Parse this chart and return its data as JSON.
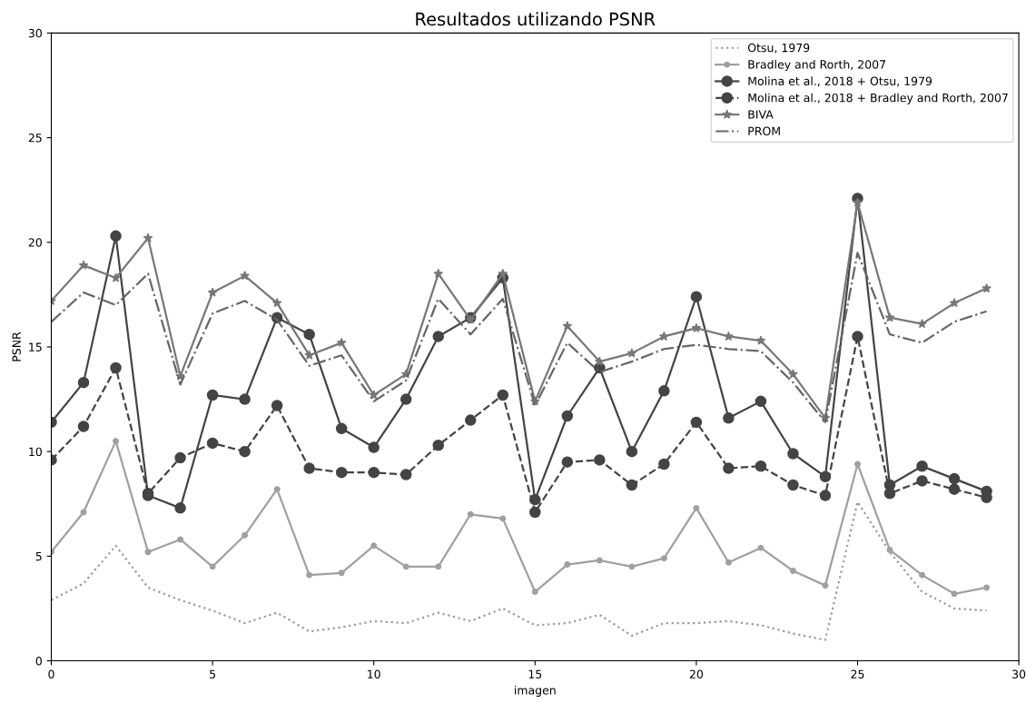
{
  "chart_data": {
    "type": "line",
    "title": "Resultados utilizando PSNR",
    "xlabel": "imagen",
    "ylabel": "PSNR",
    "x": [
      0,
      1,
      2,
      3,
      4,
      5,
      6,
      7,
      8,
      9,
      10,
      11,
      12,
      13,
      14,
      15,
      16,
      17,
      18,
      19,
      20,
      21,
      22,
      23,
      24,
      25,
      26,
      27,
      28,
      29
    ],
    "series": [
      {
        "name": "Otsu, 1979",
        "color": "#9a9a9a",
        "marker": "none",
        "line_style": "dotted",
        "values": [
          2.9,
          3.7,
          5.5,
          3.5,
          2.9,
          2.4,
          1.8,
          2.3,
          1.4,
          1.6,
          1.9,
          1.8,
          2.3,
          1.9,
          2.5,
          1.7,
          1.8,
          2.2,
          1.2,
          1.8,
          1.8,
          1.9,
          1.7,
          1.3,
          1.0,
          7.6,
          5.2,
          3.3,
          2.5,
          2.4
        ]
      },
      {
        "name": "Bradley and Rorth, 2007",
        "color": "#a0a0a0",
        "marker": "circle",
        "line_style": "solid",
        "values": [
          5.2,
          7.1,
          10.5,
          5.2,
          5.8,
          4.5,
          6.0,
          8.2,
          4.1,
          4.2,
          5.5,
          4.5,
          4.5,
          7.0,
          6.8,
          3.3,
          4.6,
          4.8,
          4.5,
          4.9,
          7.3,
          4.7,
          5.4,
          4.3,
          3.6,
          9.4,
          5.3,
          4.1,
          3.2,
          3.5
        ]
      },
      {
        "name": "Molina et al., 2018 + Otsu, 1979",
        "color": "#444444",
        "marker": "circle",
        "line_style": "solid",
        "values": [
          11.4,
          13.3,
          20.3,
          7.9,
          7.3,
          12.7,
          12.5,
          16.4,
          15.6,
          11.1,
          10.2,
          12.5,
          15.5,
          16.4,
          18.3,
          7.7,
          11.7,
          14.0,
          10.0,
          12.9,
          17.4,
          11.6,
          12.4,
          9.9,
          8.8,
          22.1,
          8.4,
          9.3,
          8.7,
          8.1
        ]
      },
      {
        "name": "Molina et al., 2018 + Bradley and Rorth, 2007",
        "color": "#444444",
        "marker": "circle",
        "line_style": "dashed",
        "values": [
          9.6,
          11.2,
          14.0,
          8.0,
          9.7,
          10.4,
          10.0,
          12.2,
          9.2,
          9.0,
          9.0,
          8.9,
          10.3,
          11.5,
          12.7,
          7.1,
          9.5,
          9.6,
          8.4,
          9.4,
          11.4,
          9.2,
          9.3,
          8.4,
          7.9,
          15.5,
          8.0,
          8.6,
          8.2,
          7.8
        ]
      },
      {
        "name": "BIVA",
        "color": "#777777",
        "marker": "star",
        "line_style": "solid",
        "values": [
          17.2,
          18.9,
          18.3,
          20.2,
          13.6,
          17.6,
          18.4,
          17.1,
          14.6,
          15.2,
          12.7,
          13.7,
          18.5,
          16.3,
          18.5,
          12.4,
          16.0,
          14.3,
          14.7,
          15.5,
          15.9,
          15.5,
          15.3,
          13.7,
          11.6,
          21.9,
          16.4,
          16.1,
          17.1,
          17.8
        ]
      },
      {
        "name": "PROM",
        "color": "#666666",
        "marker": "none",
        "line_style": "dashdot",
        "values": [
          16.2,
          17.6,
          17.0,
          18.5,
          13.2,
          16.6,
          17.2,
          16.3,
          14.1,
          14.6,
          12.4,
          13.4,
          17.3,
          15.6,
          17.3,
          12.2,
          15.2,
          13.8,
          14.3,
          14.9,
          15.1,
          14.9,
          14.8,
          13.3,
          11.4,
          19.5,
          15.6,
          15.2,
          16.2,
          16.7
        ]
      }
    ],
    "xlim": [
      0,
      30
    ],
    "xticks": [
      0,
      5,
      10,
      15,
      20,
      25,
      30
    ],
    "ylim": [
      0,
      30
    ],
    "yticks": [
      0,
      5,
      10,
      15,
      20,
      25,
      30
    ],
    "grid": false,
    "legend": "top right"
  }
}
